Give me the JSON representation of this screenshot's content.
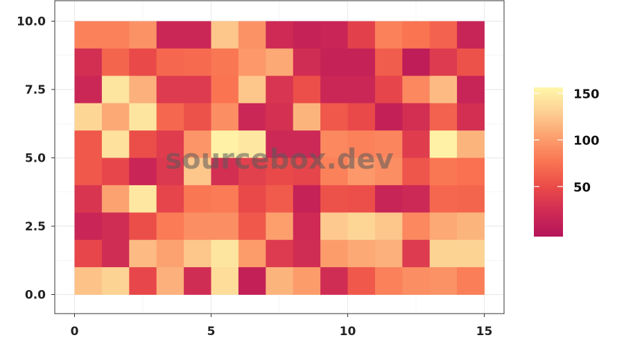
{
  "watermark": "sourcebox.dev",
  "chart_data": {
    "type": "heatmap",
    "title": "",
    "xlabel": "",
    "ylabel": "",
    "xlim": [
      0,
      15
    ],
    "ylim": [
      0,
      10
    ],
    "x_ticks": [
      0,
      5,
      10,
      15
    ],
    "x_tick_labels": [
      "0",
      "5",
      "10",
      "15"
    ],
    "y_ticks": [
      0,
      2.5,
      5,
      7.5,
      10
    ],
    "y_tick_labels": [
      "0.0",
      "2.5",
      "5.0",
      "7.5",
      "10.0"
    ],
    "grid": true,
    "x_centers": [
      0.5,
      1.5,
      2.5,
      3.5,
      4.5,
      5.5,
      6.5,
      7.5,
      8.5,
      9.5,
      10.5,
      11.5,
      12.5,
      13.5,
      14.5
    ],
    "y_centers": [
      0.5,
      1.5,
      2.5,
      3.5,
      4.5,
      5.5,
      6.5,
      7.5,
      8.5,
      9.5
    ],
    "values_top_to_bottom": [
      [
        88,
        88,
        98,
        22,
        22,
        128,
        98,
        26,
        16,
        20,
        45,
        88,
        80,
        68,
        18
      ],
      [
        30,
        70,
        52,
        72,
        74,
        82,
        102,
        112,
        28,
        16,
        16,
        65,
        10,
        40,
        58
      ],
      [
        22,
        148,
        116,
        40,
        40,
        80,
        128,
        35,
        56,
        22,
        22,
        48,
        92,
        122,
        18
      ],
      [
        138,
        112,
        148,
        72,
        58,
        96,
        22,
        32,
        118,
        62,
        52,
        14,
        30,
        68,
        30
      ],
      [
        62,
        145,
        55,
        42,
        100,
        156,
        150,
        24,
        24,
        92,
        88,
        90,
        42,
        156,
        118
      ],
      [
        62,
        50,
        20,
        38,
        128,
        30,
        44,
        52,
        48,
        88,
        102,
        96,
        60,
        82,
        78
      ],
      [
        36,
        108,
        150,
        48,
        82,
        84,
        52,
        64,
        16,
        58,
        56,
        18,
        24,
        72,
        70
      ],
      [
        20,
        28,
        55,
        84,
        96,
        96,
        62,
        106,
        26,
        130,
        138,
        128,
        92,
        112,
        118
      ],
      [
        50,
        28,
        122,
        108,
        128,
        148,
        104,
        40,
        28,
        104,
        112,
        116,
        40,
        136,
        136
      ],
      [
        126,
        136,
        50,
        116,
        28,
        142,
        14,
        118,
        104,
        28,
        62,
        88,
        96,
        98,
        86
      ]
    ],
    "colorbar": {
      "min": 0,
      "max": 160,
      "ticks": [
        50,
        100,
        150
      ],
      "tick_labels": [
        "50",
        "100",
        "150"
      ],
      "colormap": [
        "#b5145a",
        "#cf2b55",
        "#ea4b48",
        "#fa7452",
        "#fca06e",
        "#fdcf92",
        "#fff7aa"
      ]
    }
  }
}
